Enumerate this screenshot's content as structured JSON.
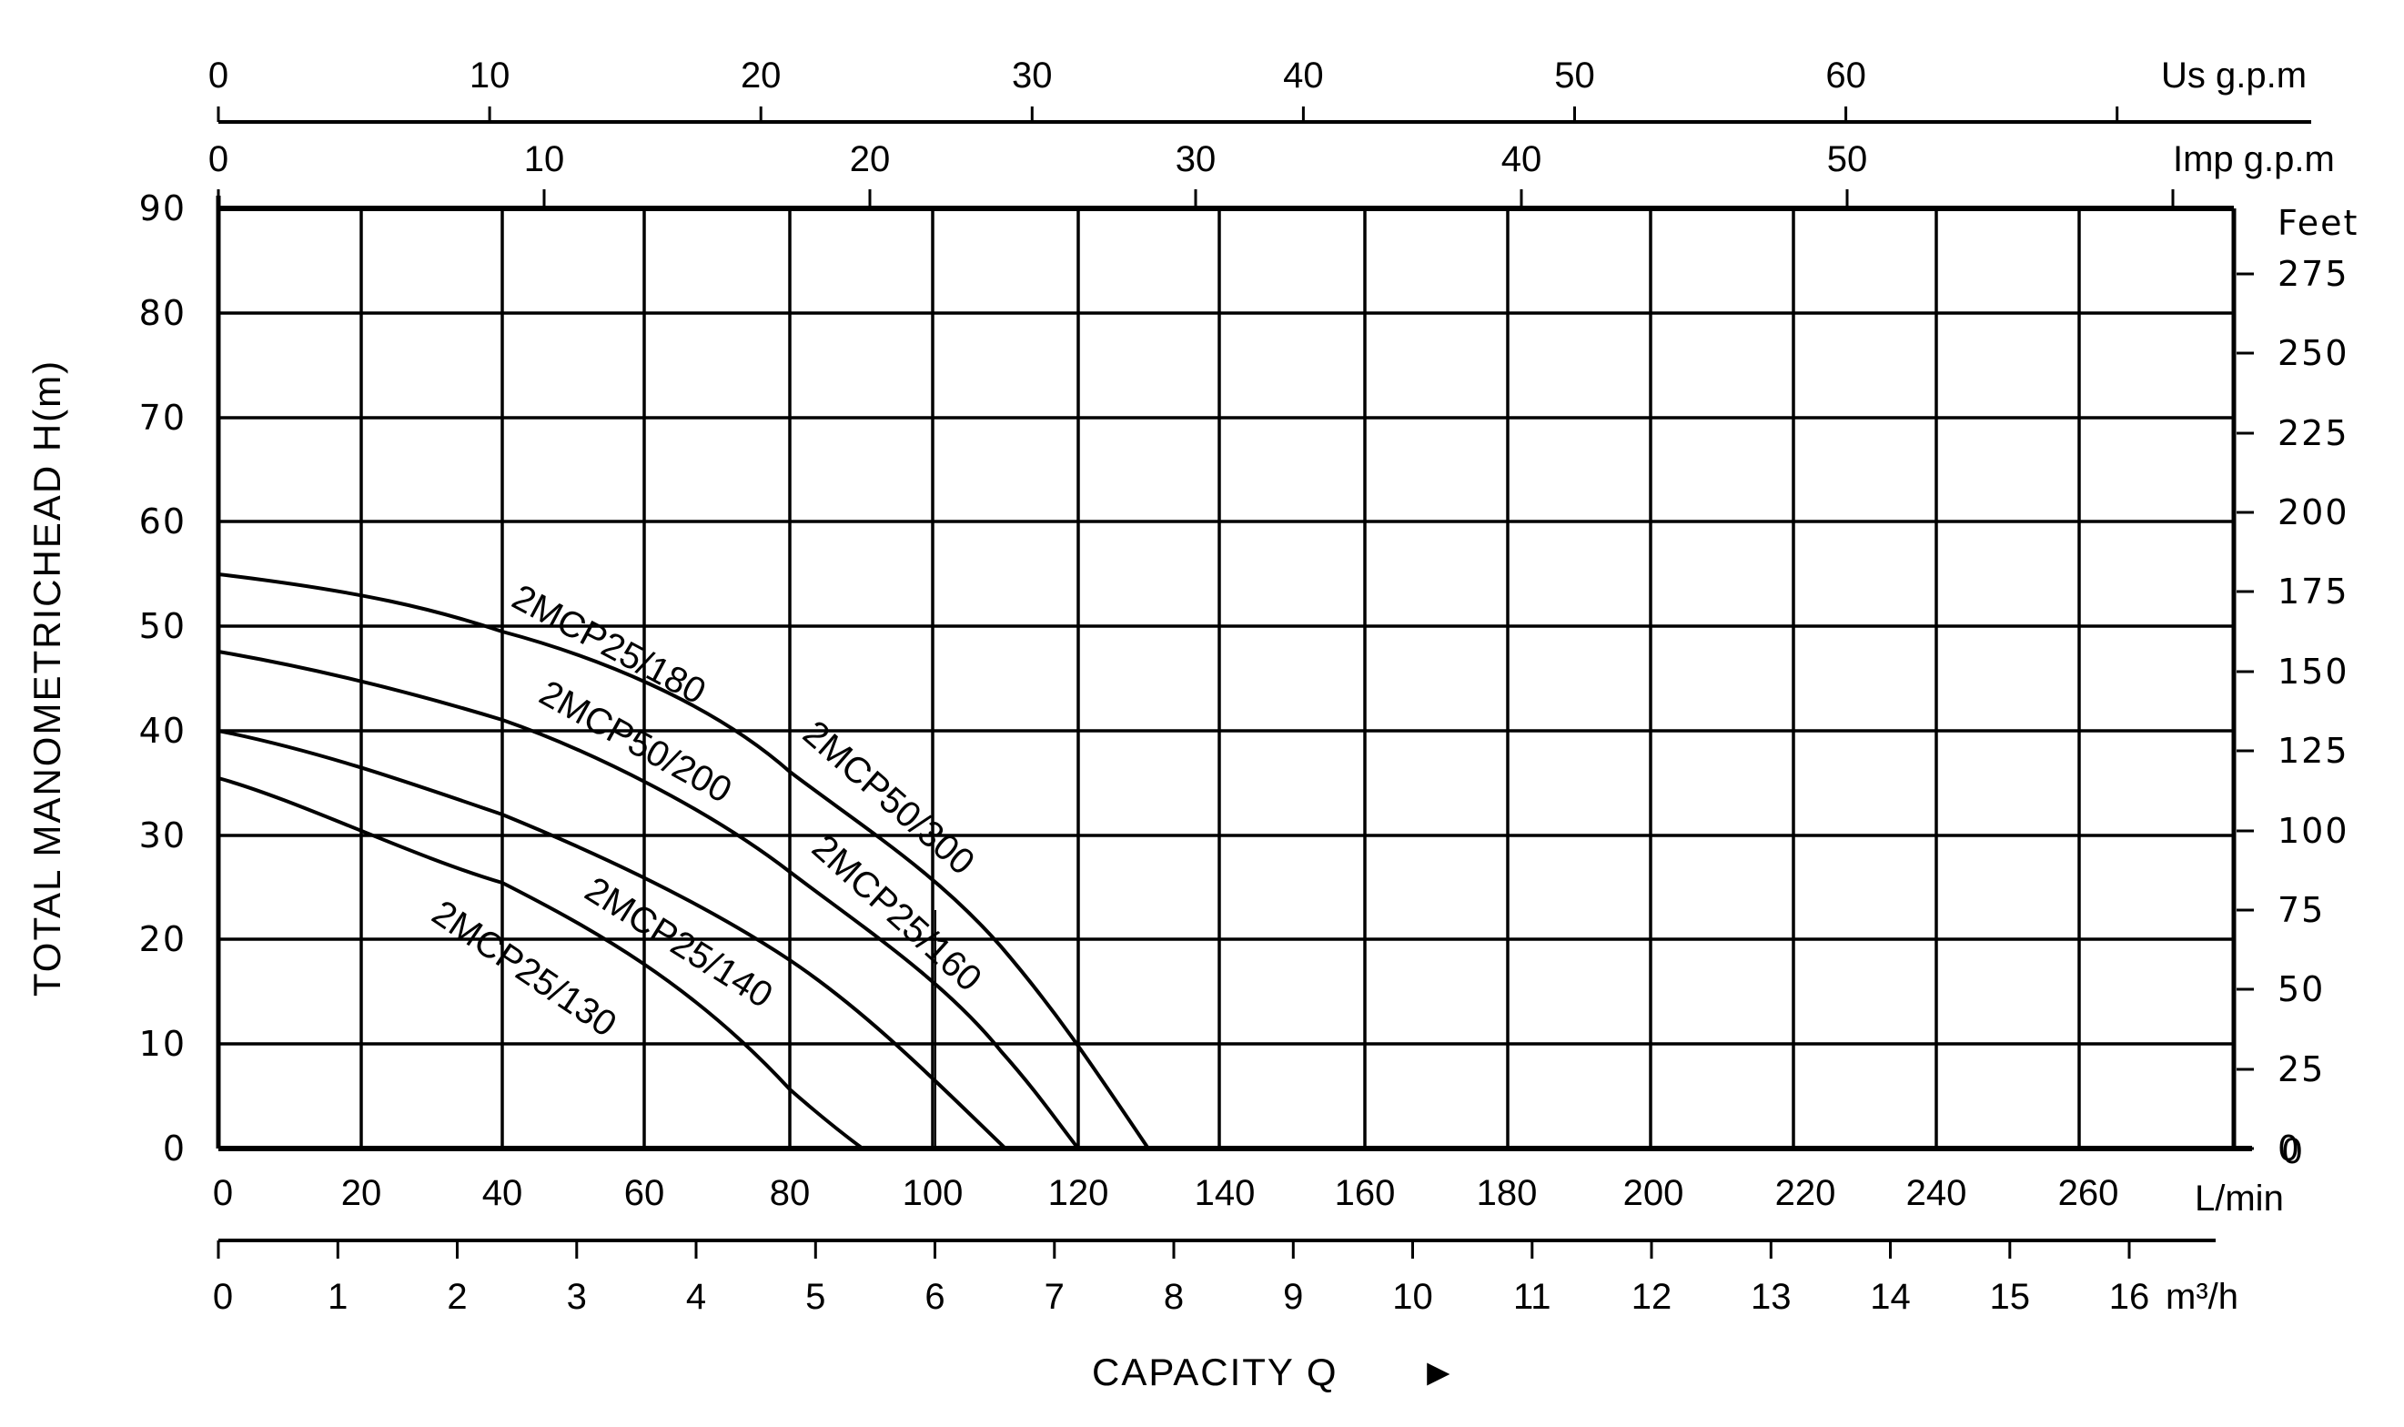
{
  "chart_data": {
    "type": "line",
    "title": "",
    "xlabel": "CAPACITY Q",
    "ylabel": "TOTAL MANOMETRICHEAD H(m)",
    "grid": true,
    "legend": "inline labels along curves",
    "x_axes": {
      "lpm": {
        "unit": "L/min",
        "ticks": [
          0,
          20,
          40,
          60,
          80,
          100,
          120,
          140,
          160,
          180,
          200,
          220,
          240,
          260
        ],
        "range": [
          0,
          280
        ]
      },
      "m3h": {
        "unit": "m³/h",
        "ticks": [
          0,
          1,
          2,
          3,
          4,
          5,
          6,
          7,
          8,
          9,
          10,
          11,
          12,
          13,
          14,
          15,
          16
        ]
      },
      "us_gpm": {
        "unit": "Us g.p.m",
        "ticks": [
          0,
          10,
          20,
          30,
          40,
          50,
          60
        ]
      },
      "imp_gpm": {
        "unit": "Imp g.p.m",
        "ticks": [
          0,
          10,
          20,
          30,
          40,
          50
        ]
      }
    },
    "y_axes": {
      "m": {
        "unit": "H(m)",
        "ticks": [
          0,
          10,
          20,
          30,
          40,
          50,
          60,
          70,
          80,
          90
        ],
        "range": [
          0,
          90
        ]
      },
      "feet": {
        "unit": "Feet",
        "ticks": [
          0,
          25,
          50,
          75,
          100,
          125,
          150,
          175,
          200,
          225,
          250,
          275
        ]
      }
    },
    "x": [
      0,
      20,
      40,
      60,
      80,
      100,
      120,
      130
    ],
    "series": [
      {
        "name": "2MCP25/180",
        "alt_name": "2MCP50/300",
        "points": [
          [
            0,
            55
          ],
          [
            20,
            53
          ],
          [
            40,
            49.5
          ],
          [
            60,
            44
          ],
          [
            80,
            36
          ],
          [
            100,
            26
          ],
          [
            120,
            11.5
          ],
          [
            130,
            0
          ]
        ]
      },
      {
        "name": "2MCP50/200",
        "alt_name": "2MCP25/160",
        "points": [
          [
            0,
            47.5
          ],
          [
            20,
            45.5
          ],
          [
            40,
            41
          ],
          [
            60,
            35
          ],
          [
            80,
            26.5
          ],
          [
            100,
            17
          ],
          [
            110,
            9
          ],
          [
            120,
            0
          ]
        ]
      },
      {
        "name": "2MCP25/140",
        "points": [
          [
            0,
            40
          ],
          [
            20,
            36.5
          ],
          [
            40,
            32
          ],
          [
            60,
            25.5
          ],
          [
            80,
            18
          ],
          [
            100,
            7.5
          ],
          [
            110,
            0
          ]
        ]
      },
      {
        "name": "2MCP25/130",
        "points": [
          [
            0,
            35.5
          ],
          [
            20,
            31
          ],
          [
            40,
            25.5
          ],
          [
            60,
            16
          ],
          [
            80,
            5.5
          ],
          [
            90,
            0
          ]
        ]
      }
    ]
  },
  "labels": {
    "us_gpm_unit": "Us g.p.m",
    "imp_gpm_unit": "Imp g.p.m",
    "feet_unit": "Feet",
    "lpm_unit": "L/min",
    "m3h_unit": "m³/h",
    "y_title": "TOTAL MANOMETRICHEAD H(m)",
    "x_title": "CAPACITY Q",
    "x_title_arrow": "►",
    "curves": {
      "c180": "2MCP25/180",
      "c300": "2MCP50/300",
      "c200": "2MCP50/200",
      "c160": "2MCP25/160",
      "c140": "2MCP25/140",
      "c130": "2MCP25/130"
    },
    "us_ticks": [
      "0",
      "10",
      "20",
      "30",
      "40",
      "50",
      "60"
    ],
    "imp_ticks": [
      "0",
      "10",
      "20",
      "30",
      "40",
      "50"
    ],
    "m_ticks": [
      "0",
      "10",
      "20",
      "30",
      "40",
      "50",
      "60",
      "70",
      "80",
      "90"
    ],
    "feet_ticks": [
      "0",
      "25",
      "50",
      "75",
      "100",
      "125",
      "150",
      "175",
      "200",
      "225",
      "250",
      "275"
    ],
    "lpm_ticks": [
      "0",
      "20",
      "40",
      "60",
      "80",
      "100",
      "120",
      "140",
      "160",
      "180",
      "200",
      "220",
      "240",
      "260"
    ],
    "m3h_ticks": [
      "0",
      "1",
      "2",
      "3",
      "4",
      "5",
      "6",
      "7",
      "8",
      "9",
      "10",
      "11",
      "12",
      "13",
      "14",
      "15",
      "16"
    ]
  }
}
